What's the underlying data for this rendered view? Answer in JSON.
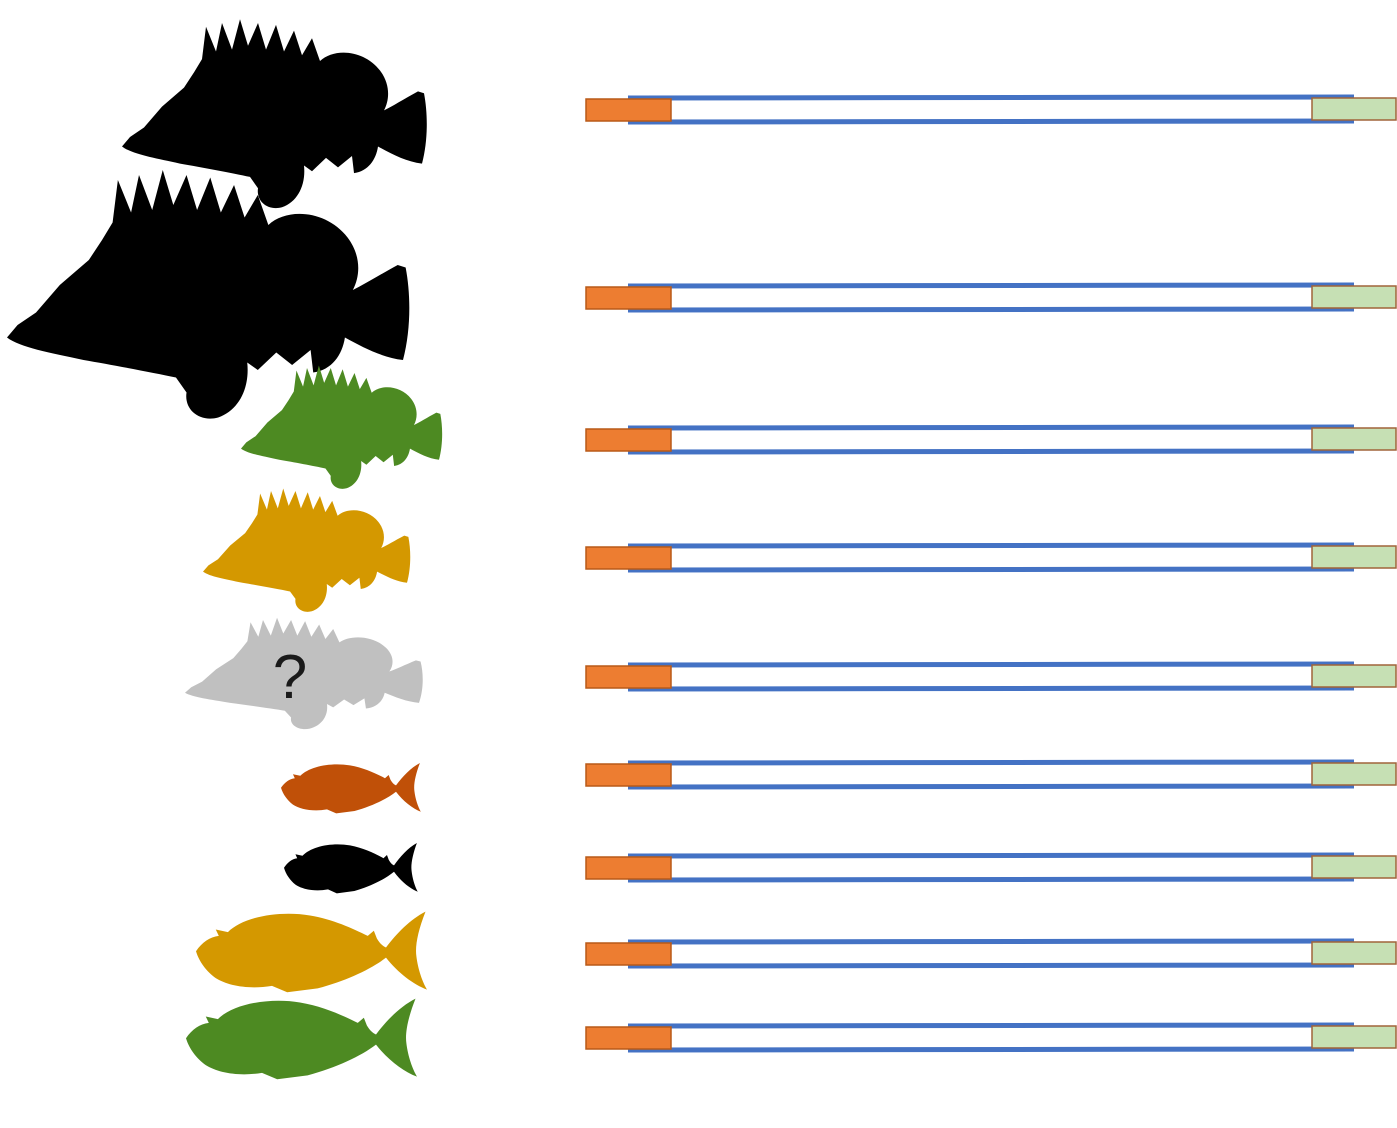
{
  "colors": {
    "black": "#000000",
    "green": "#4d8a22",
    "gold": "#d49800",
    "gray": "#c0c0c0",
    "rust": "#c05008",
    "line": "#4472c4",
    "orange_box": "#ed7d31",
    "orange_border": "#b85a18",
    "green_box": "#c6e0b4",
    "green_border": "#a0643a"
  },
  "rows": [
    {
      "fish": "rockfish",
      "color": "black",
      "label": ""
    },
    {
      "fish": "rockfish",
      "color": "black",
      "label": ""
    },
    {
      "fish": "rockfish",
      "color": "green",
      "label": ""
    },
    {
      "fish": "rockfish",
      "color": "gold",
      "label": ""
    },
    {
      "fish": "rockfish",
      "color": "gray",
      "label": "?"
    },
    {
      "fish": "slender",
      "color": "rust",
      "label": ""
    },
    {
      "fish": "slender",
      "color": "black",
      "label": ""
    },
    {
      "fish": "slender",
      "color": "gold",
      "label": ""
    },
    {
      "fish": "slender",
      "color": "green",
      "label": ""
    }
  ]
}
